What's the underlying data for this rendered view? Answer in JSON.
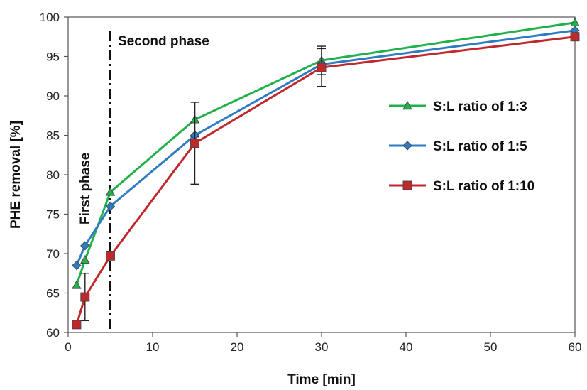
{
  "chart_data": {
    "type": "line",
    "xlabel": "Time [min]",
    "ylabel": "PHE removal [%]",
    "xlim": [
      0,
      60
    ],
    "ylim": [
      60,
      100
    ],
    "xticks": [
      0,
      10,
      20,
      30,
      40,
      50,
      60
    ],
    "yticks": [
      60,
      65,
      70,
      75,
      80,
      85,
      90,
      95,
      100
    ],
    "grid": false,
    "legend_position": "right",
    "series": [
      {
        "name": "S:L ratio of 1:3",
        "color": "#22b04b",
        "marker": "triangle",
        "x": [
          1,
          2,
          5,
          15,
          30,
          60
        ],
        "y": [
          66,
          69.2,
          77.8,
          87,
          94.5,
          99.3
        ],
        "error": [
          0,
          0,
          0,
          2.2,
          1.8,
          0
        ]
      },
      {
        "name": "S:L ratio of 1:5",
        "color": "#2e7bc4",
        "marker": "diamond",
        "x": [
          1,
          2,
          5,
          15,
          30,
          60
        ],
        "y": [
          68.5,
          71,
          76,
          85,
          94,
          98.3
        ],
        "error": [
          0,
          0,
          0,
          0,
          0,
          0
        ]
      },
      {
        "name": "S:L ratio of 1:10",
        "color": "#c0282c",
        "marker": "square",
        "x": [
          1,
          2,
          5,
          15,
          30,
          60
        ],
        "y": [
          61,
          64.5,
          69.7,
          84,
          93.6,
          97.5
        ],
        "error": [
          0,
          3,
          0,
          5.2,
          2.4,
          0
        ]
      }
    ],
    "annotations": {
      "divider_x": 5,
      "first_phase": "First phase",
      "second_phase": "Second phase"
    }
  }
}
